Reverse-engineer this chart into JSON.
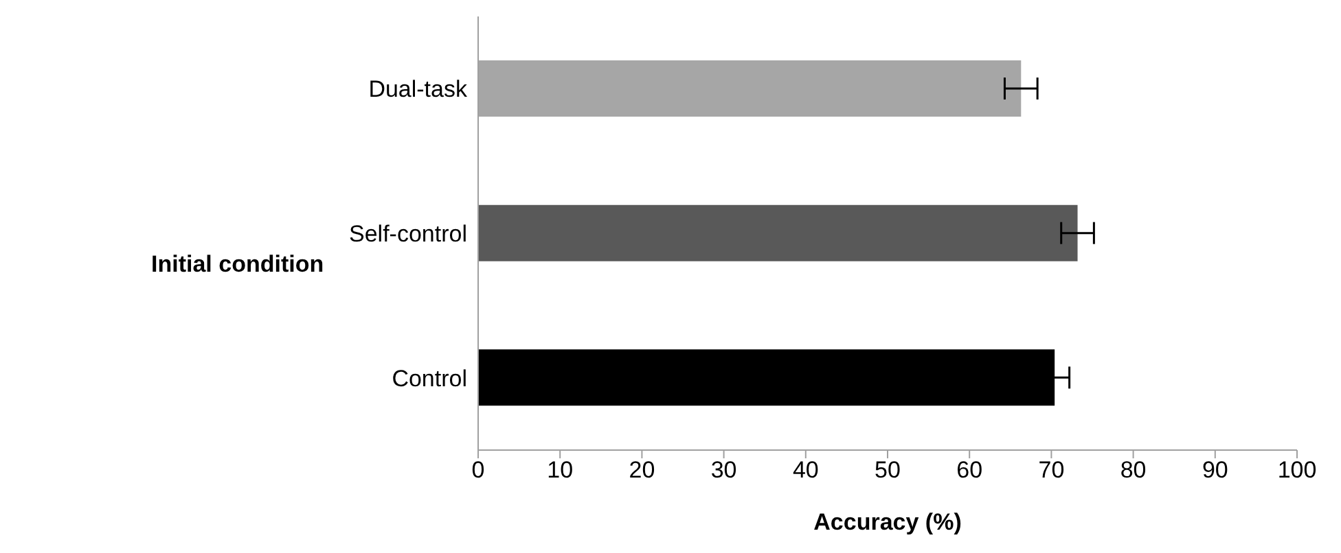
{
  "chart_data": {
    "type": "bar",
    "orientation": "horizontal",
    "xlabel": "Accuracy (%)",
    "ylabel": "Initial condition",
    "categories": [
      "Dual-task",
      "Self-control",
      "Control"
    ],
    "values": [
      66.3,
      73.2,
      70.4
    ],
    "errors": [
      2,
      2,
      1.8
    ],
    "colors": [
      "#a6a6a6",
      "#595959",
      "#000000"
    ],
    "xlim": [
      0,
      100
    ],
    "xticks": [
      0,
      10,
      20,
      30,
      40,
      50,
      60,
      70,
      80,
      90,
      100
    ],
    "grid": false,
    "legend": false
  }
}
